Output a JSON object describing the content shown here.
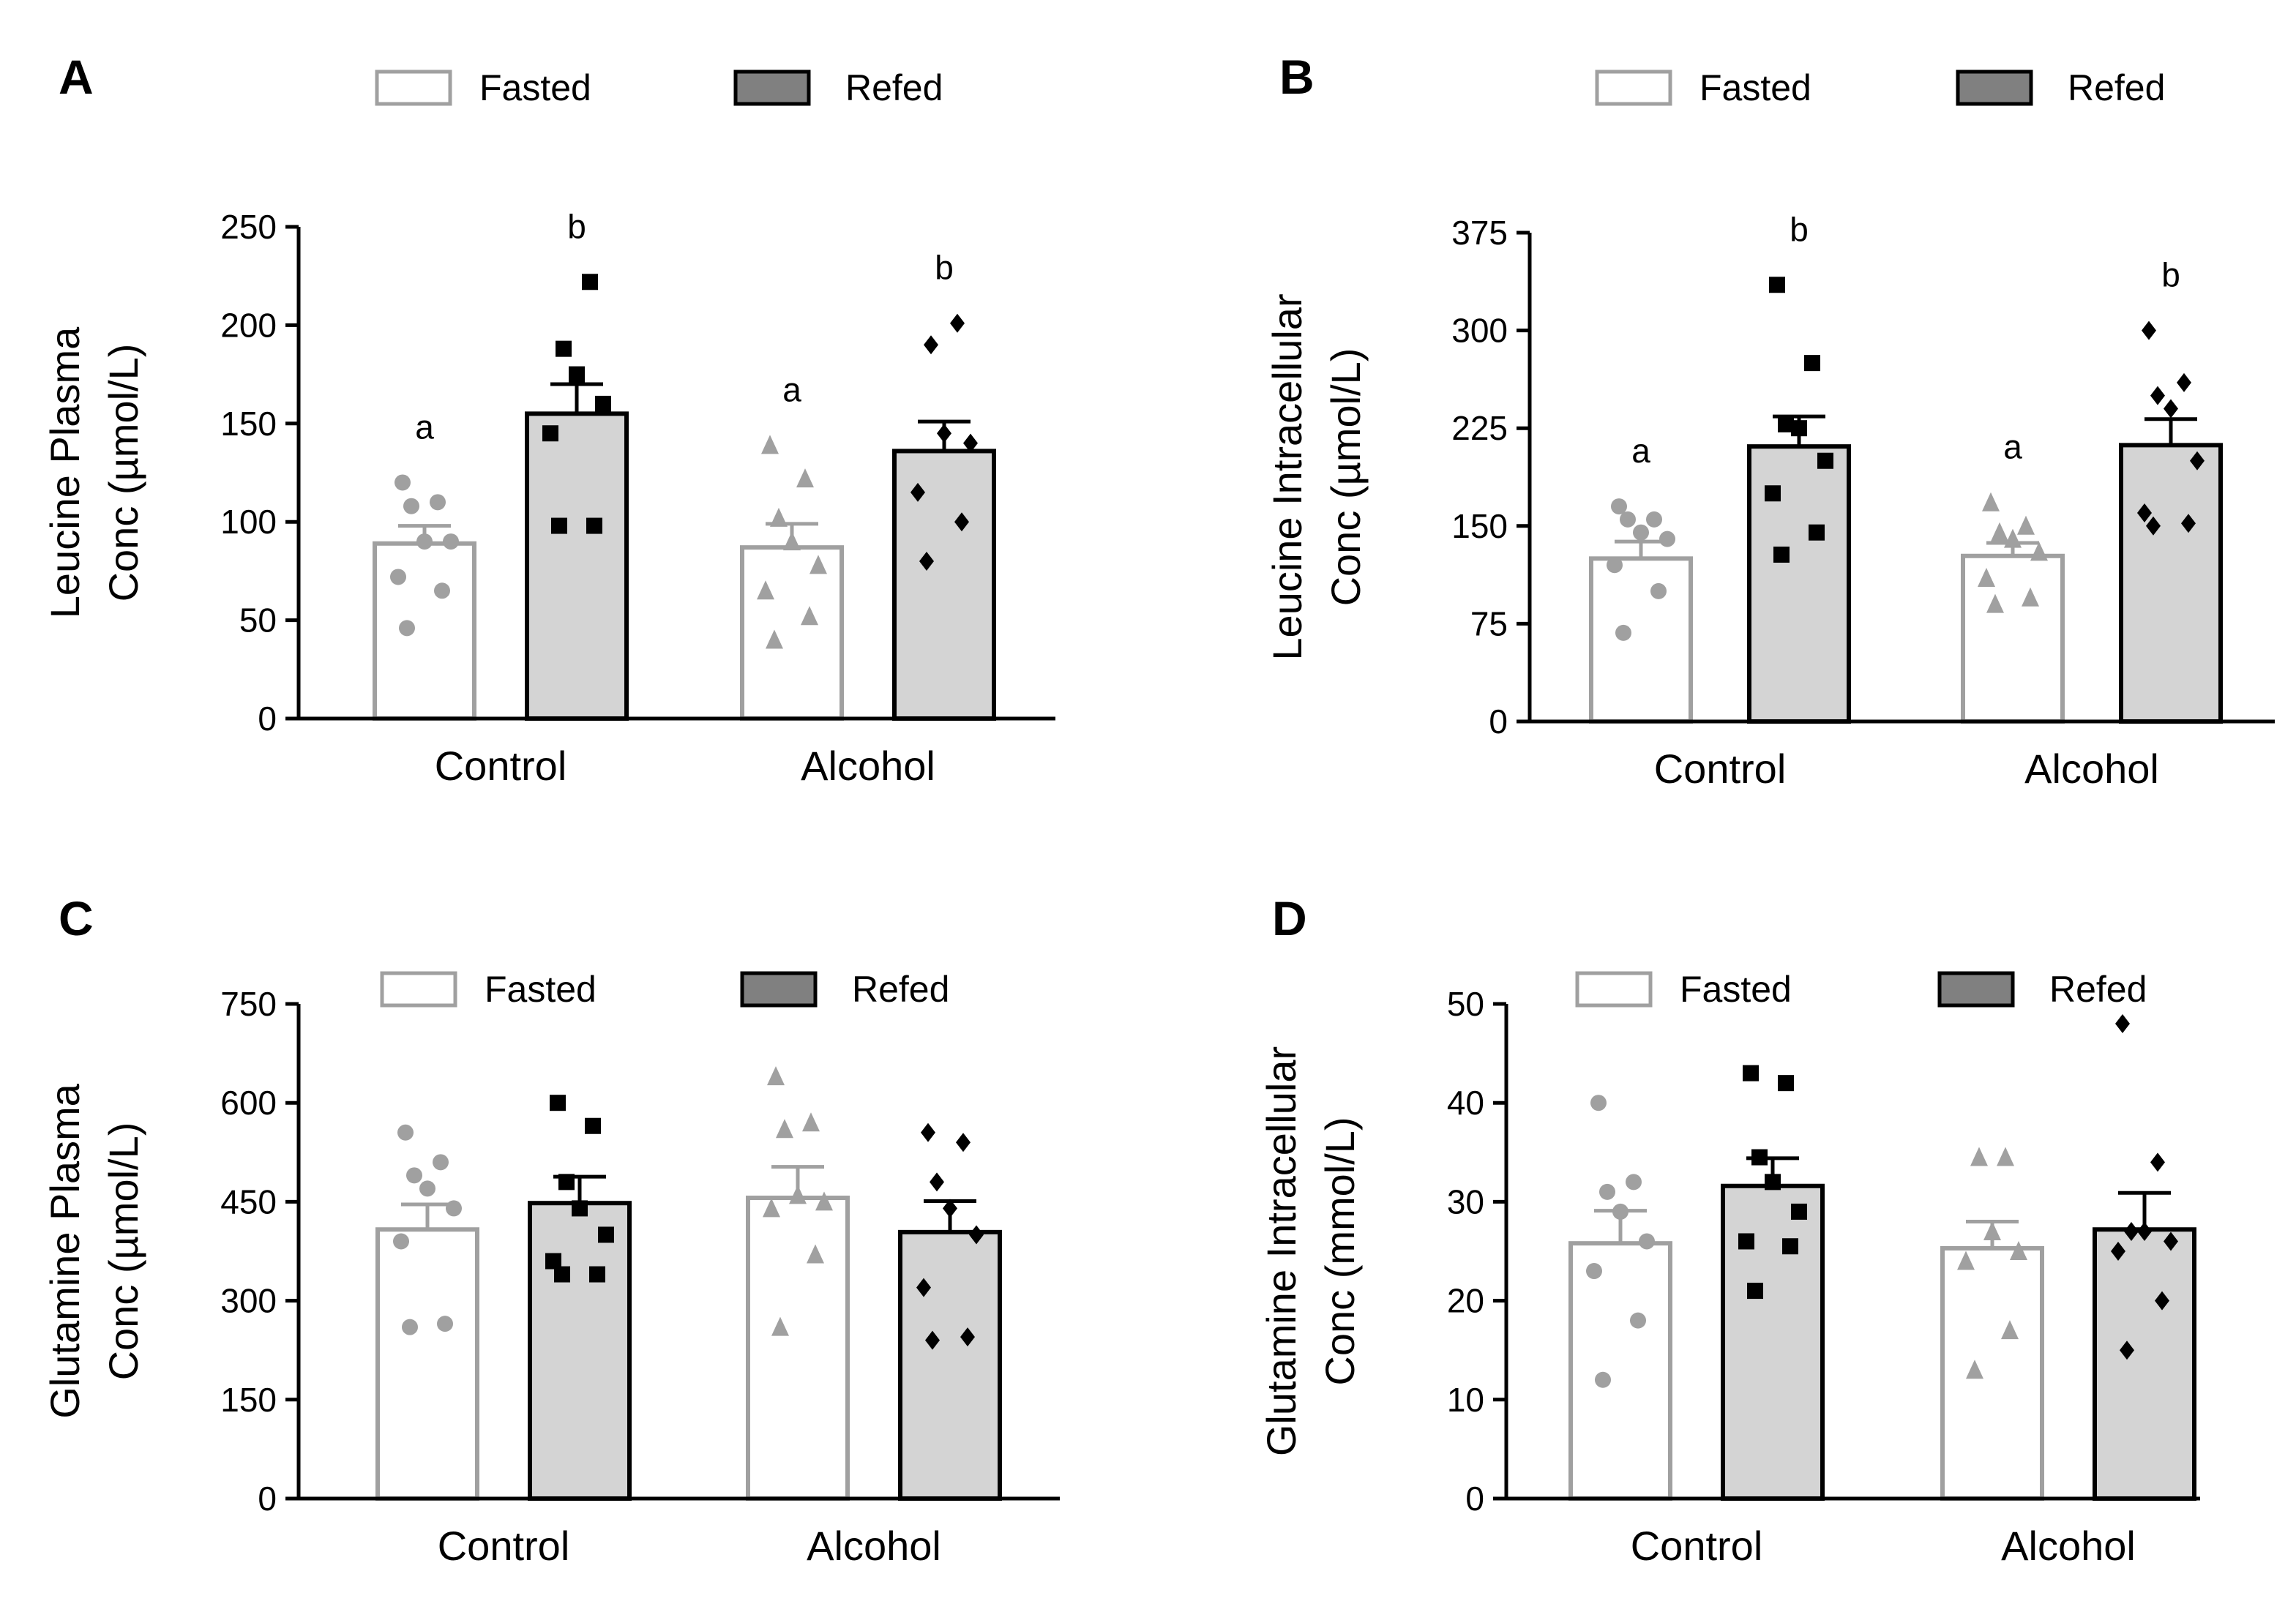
{
  "legend": {
    "fasted_label": "Fasted",
    "refed_label": "Refed",
    "fasted_color": "#ffffff",
    "fasted_stroke": "#a0a0a0",
    "refed_color": "#808080",
    "refed_stroke": "#000000"
  },
  "colors": {
    "fasted_bar_fill": "#ffffff",
    "fasted_bar_stroke": "#a0a0a0",
    "fasted_point": "#a0a0a0",
    "refed_bar_fill": "#d4d4d4",
    "refed_bar_stroke": "#000000",
    "refed_point": "#000000",
    "axis": "#000000"
  },
  "chart_data": [
    {
      "panel_label": "A",
      "type": "bar",
      "ylabel_line1": "Leucine Plasma",
      "ylabel_line2": "Conc (µmol/L)",
      "ylim": [
        0,
        250
      ],
      "yticks": [
        "0",
        "50",
        "100",
        "150",
        "200",
        "250"
      ],
      "categories": [
        "Control",
        "Alcohol"
      ],
      "series": [
        {
          "name": "Fasted",
          "values": [
            89,
            87
          ],
          "sem": [
            9,
            12
          ],
          "markers": [
            "circle",
            "triangle"
          ],
          "points": [
            [
              46,
              65,
              72,
              90,
              90,
              108,
              110,
              120
            ],
            [
              40,
              52,
              65,
              78,
              90,
              102,
              122,
              139
            ]
          ]
        },
        {
          "name": "Refed",
          "values": [
            155,
            136
          ],
          "sem": [
            15,
            15
          ],
          "markers": [
            "square",
            "diamond"
          ],
          "points": [
            [
              98,
              98,
              145,
              160,
              175,
              188,
              222
            ],
            [
              80,
              100,
              115,
              140,
              145,
              190,
              201
            ]
          ]
        }
      ],
      "annotations": [
        [
          "a",
          "a"
        ],
        [
          "b",
          "b"
        ]
      ]
    },
    {
      "panel_label": "B",
      "type": "bar",
      "ylabel_line1": "Leucine Intracellular",
      "ylabel_line2": "Conc (µmol/L)",
      "ylim": [
        0,
        375
      ],
      "yticks": [
        "0",
        "75",
        "150",
        "225",
        "300",
        "375"
      ],
      "categories": [
        "Control",
        "Alcohol"
      ],
      "series": [
        {
          "name": "Fasted",
          "values": [
            125,
            127
          ],
          "sem": [
            13,
            10
          ],
          "markers": [
            "circle",
            "triangle"
          ],
          "points": [
            [
              68,
              100,
              120,
              140,
              145,
              155,
              155,
              165
            ],
            [
              90,
              95,
              110,
              130,
              140,
              145,
              150,
              168
            ]
          ]
        },
        {
          "name": "Refed",
          "values": [
            211,
            212
          ],
          "sem": [
            23,
            20
          ],
          "markers": [
            "square",
            "diamond"
          ],
          "points": [
            [
              128,
              145,
              175,
              200,
              225,
              228,
              275,
              335
            ],
            [
              150,
              152,
              160,
              200,
              240,
              250,
              260,
              300
            ]
          ]
        }
      ],
      "annotations": [
        [
          "a",
          "a"
        ],
        [
          "b",
          "b"
        ]
      ]
    },
    {
      "panel_label": "C",
      "type": "bar",
      "ylabel_line1": "Glutamine Plasma",
      "ylabel_line2": "Conc (µmol/L)",
      "ylim": [
        0,
        750
      ],
      "yticks": [
        "0",
        "150",
        "300",
        "450",
        "600",
        "750"
      ],
      "categories": [
        "Control",
        "Alcohol"
      ],
      "series": [
        {
          "name": "Fasted",
          "values": [
            408,
            456
          ],
          "sem": [
            38,
            47
          ],
          "markers": [
            "circle",
            "triangle"
          ],
          "points": [
            [
              260,
              265,
              390,
              440,
              470,
              490,
              510,
              555
            ],
            [
              260,
              370,
              440,
              450,
              460,
              560,
              570,
              640
            ]
          ]
        },
        {
          "name": "Refed",
          "values": [
            448,
            404
          ],
          "sem": [
            40,
            47
          ],
          "markers": [
            "square",
            "diamond"
          ],
          "points": [
            [
              340,
              340,
              360,
              400,
              440,
              480,
              565,
              600
            ],
            [
              240,
              245,
              320,
              400,
              440,
              480,
              540,
              555
            ]
          ]
        }
      ],
      "annotations": [
        [
          "",
          ""
        ],
        [
          "",
          ""
        ]
      ]
    },
    {
      "panel_label": "D",
      "type": "bar",
      "ylabel_line1": "Glutamine Intracellular",
      "ylabel_line2": "Conc (mmol/L)",
      "ylim": [
        0,
        50
      ],
      "yticks": [
        "0",
        "10",
        "20",
        "30",
        "40",
        "50"
      ],
      "categories": [
        "Control",
        "Alcohol"
      ],
      "series": [
        {
          "name": "Fasted",
          "values": [
            25.8,
            25.3
          ],
          "sem": [
            3.3,
            2.7
          ],
          "markers": [
            "circle",
            "triangle"
          ],
          "points": [
            [
              12,
              18,
              23,
              26,
              29,
              31,
              32,
              40
            ],
            [
              13,
              17,
              24,
              25,
              27,
              34.5,
              34.5
            ]
          ]
        },
        {
          "name": "Refed",
          "values": [
            31.6,
            27.2
          ],
          "sem": [
            2.8,
            3.7
          ],
          "markers": [
            "square",
            "diamond"
          ],
          "points": [
            [
              21,
              25.5,
              26,
              29,
              32,
              34.5,
              42,
              43
            ],
            [
              15,
              20,
              25,
              26,
              27,
              27,
              34,
              48
            ]
          ]
        }
      ],
      "annotations": [
        [
          "",
          ""
        ],
        [
          "",
          ""
        ]
      ]
    }
  ]
}
